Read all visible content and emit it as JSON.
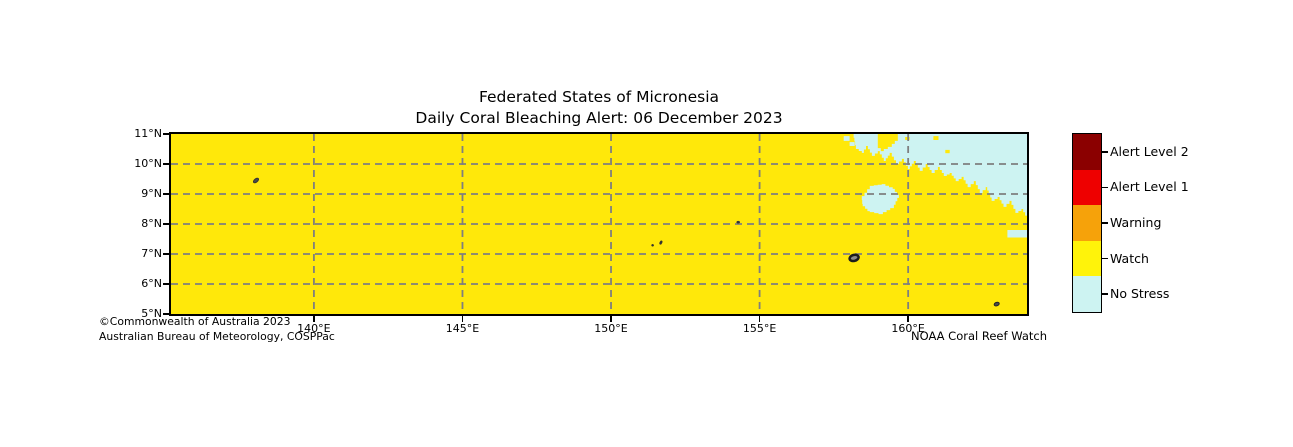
{
  "title": {
    "line1": "Federated States of Micronesia",
    "line2": "Daily Coral Bleaching Alert: 06 December 2023"
  },
  "annotations": {
    "copyright_line1": "©Commonwealth of Australia 2023",
    "copyright_line2": "Australian Bureau of Meteorology, COSPPac",
    "credit": "NOAA Coral Reef Watch"
  },
  "legend": {
    "position": "right",
    "entries": [
      {
        "label": "Alert Level 2",
        "color": "#8B0000"
      },
      {
        "label": "Alert Level 1",
        "color": "#EE0000"
      },
      {
        "label": "Warning",
        "color": "#F6A20A"
      },
      {
        "label": "Watch",
        "color": "#FFF30A"
      },
      {
        "label": "No Stress",
        "color": "#CDF3F2"
      }
    ]
  },
  "chart_data": {
    "type": "heatmap",
    "title": "Federated States of Micronesia",
    "subtitle": "Daily Coral Bleaching Alert: 06 December 2023",
    "x_axis": {
      "unit": "°E",
      "range": [
        135.19,
        164.0
      ],
      "tick_values": [
        140,
        145,
        150,
        155,
        160
      ],
      "tick_labels": [
        "140°E",
        "145°E",
        "150°E",
        "155°E",
        "160°E"
      ]
    },
    "y_axis": {
      "unit": "°N",
      "range": [
        5,
        11
      ],
      "tick_values": [
        11,
        10,
        9,
        8,
        7,
        6,
        5
      ],
      "tick_labels": [
        "11°N",
        "10°N",
        "9°N",
        "8°N",
        "7°N",
        "6°N",
        "5°N"
      ]
    },
    "grid": {
      "show": true,
      "style": "dashed",
      "color": "#7f7f7f",
      "x_lines": [
        140,
        145,
        150,
        155,
        160
      ],
      "y_lines": [
        6,
        7,
        8,
        9,
        10
      ]
    },
    "status_colors": {
      "alert_level_2": "#8B0000",
      "alert_level_1": "#EE0000",
      "warning": "#F6A20A",
      "watch": "#FFE80A",
      "no_stress": "#CDF3F2"
    },
    "base_status": "Watch",
    "no_stress_region": {
      "description": "No Stress water in the northeast corner of the map, roughly north of 8°N between 158°E and 164°E; all remaining water is at Watch level",
      "boundary": [
        [
          158.14,
          11.0
        ],
        [
          158.24,
          10.5
        ],
        [
          158.44,
          10.37
        ],
        [
          158.58,
          10.6
        ],
        [
          158.78,
          10.27
        ],
        [
          158.98,
          10.43
        ],
        [
          159.18,
          10.1
        ],
        [
          159.38,
          10.37
        ],
        [
          159.59,
          10.0
        ],
        [
          159.79,
          10.17
        ],
        [
          159.99,
          9.83
        ],
        [
          160.19,
          10.1
        ],
        [
          160.39,
          9.77
        ],
        [
          160.59,
          10.0
        ],
        [
          160.79,
          9.7
        ],
        [
          161.0,
          9.9
        ],
        [
          161.2,
          9.6
        ],
        [
          161.4,
          9.7
        ],
        [
          161.6,
          9.43
        ],
        [
          161.8,
          9.57
        ],
        [
          162.0,
          9.23
        ],
        [
          162.21,
          9.43
        ],
        [
          162.41,
          9.03
        ],
        [
          162.61,
          9.23
        ],
        [
          162.81,
          8.77
        ],
        [
          163.01,
          8.9
        ],
        [
          163.21,
          8.57
        ],
        [
          163.41,
          8.77
        ],
        [
          163.61,
          8.37
        ],
        [
          163.81,
          8.5
        ],
        [
          164.0,
          8.17
        ]
      ],
      "detached_patches": [
        [
          [
            158.44,
            8.93
          ],
          [
            158.71,
            9.27
          ],
          [
            159.11,
            9.33
          ],
          [
            159.48,
            9.17
          ],
          [
            159.69,
            8.87
          ],
          [
            159.52,
            8.53
          ],
          [
            159.15,
            8.33
          ],
          [
            158.71,
            8.43
          ],
          [
            158.47,
            8.67
          ]
        ],
        [
          [
            157.83,
            10.93
          ],
          [
            158.03,
            10.93
          ],
          [
            158.03,
            10.77
          ],
          [
            157.83,
            10.77
          ]
        ],
        [
          [
            158.03,
            10.73
          ],
          [
            158.2,
            10.73
          ],
          [
            158.2,
            10.6
          ],
          [
            158.03,
            10.6
          ]
        ],
        [
          [
            163.34,
            7.8
          ],
          [
            164.0,
            7.8
          ],
          [
            164.0,
            7.55
          ],
          [
            163.34,
            7.55
          ]
        ]
      ]
    },
    "watch_patches_in_no_stress": [
      [
        [
          158.98,
          11.0
        ],
        [
          159.65,
          11.0
        ],
        [
          159.65,
          10.77
        ],
        [
          159.45,
          10.57
        ],
        [
          159.18,
          10.43
        ],
        [
          158.98,
          10.63
        ]
      ],
      [
        [
          159.9,
          10.9
        ],
        [
          160.05,
          10.9
        ],
        [
          160.05,
          10.8
        ],
        [
          159.9,
          10.8
        ]
      ],
      [
        [
          160.85,
          10.93
        ],
        [
          161.02,
          10.93
        ],
        [
          161.02,
          10.8
        ],
        [
          160.85,
          10.8
        ]
      ],
      [
        [
          161.25,
          10.47
        ],
        [
          161.4,
          10.47
        ],
        [
          161.4,
          10.36
        ],
        [
          161.25,
          10.36
        ]
      ]
    ],
    "islands": [
      {
        "lon": 138.05,
        "lat": 9.45,
        "rx": 3.0,
        "ry": 1.6,
        "rot": -40,
        "fill": "#4a4a4a",
        "stroke": "#333333",
        "sw": 1
      },
      {
        "lon": 151.4,
        "lat": 7.29,
        "rx": 1.1,
        "ry": 1.0,
        "rot": 0,
        "fill": "#333333",
        "stroke": "#333333",
        "sw": 0.5
      },
      {
        "lon": 151.68,
        "lat": 7.38,
        "rx": 1.1,
        "ry": 1.9,
        "rot": 25,
        "fill": "#333333",
        "stroke": "#333333",
        "sw": 0.5
      },
      {
        "lon": 154.28,
        "lat": 8.06,
        "rx": 1.6,
        "ry": 1.1,
        "rot": 0,
        "fill": "#333333",
        "stroke": "#333333",
        "sw": 0.5
      },
      {
        "lon": 158.18,
        "lat": 6.87,
        "rx": 4.6,
        "ry": 3.0,
        "rot": -15,
        "fill": "#8c8c8c",
        "stroke": "#1c1c1c",
        "sw": 2.5
      },
      {
        "lon": 162.98,
        "lat": 5.33,
        "rx": 2.6,
        "ry": 1.7,
        "rot": -20,
        "fill": "#4a4a4a",
        "stroke": "#222222",
        "sw": 1
      }
    ]
  }
}
